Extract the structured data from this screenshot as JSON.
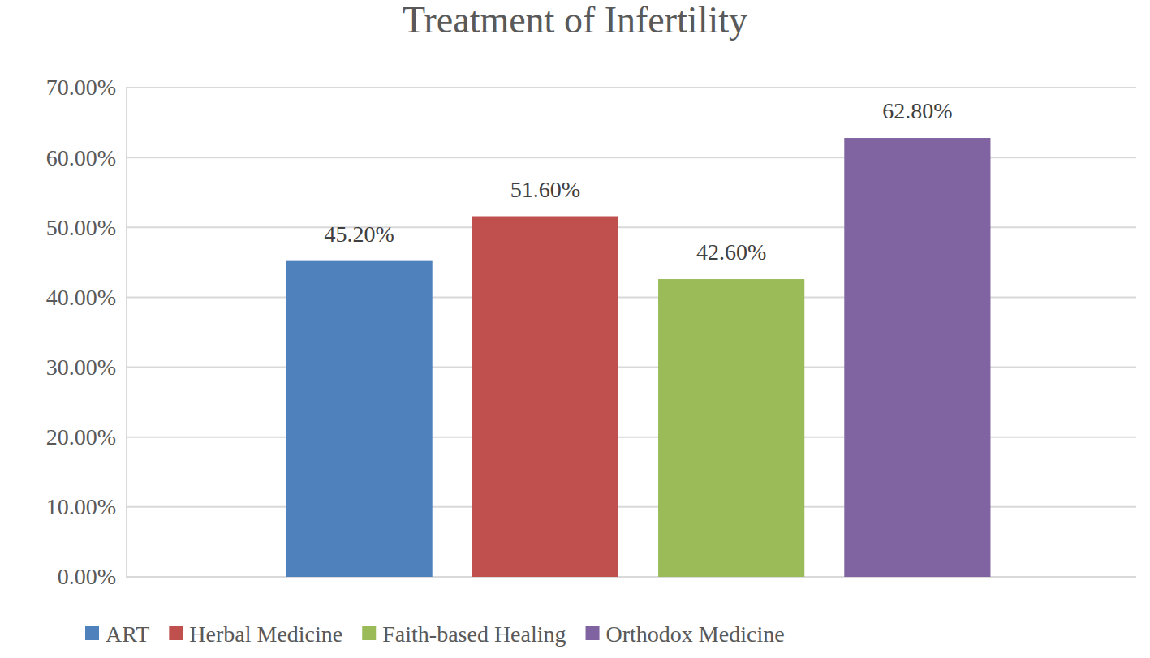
{
  "chart_data": {
    "type": "bar",
    "title": "Treatment of Infertility",
    "categories": [
      "ART",
      "Herbal Medicine",
      "Faith-based Healing",
      "Orthodox Medicine"
    ],
    "values": [
      45.2,
      51.6,
      42.6,
      62.8
    ],
    "value_labels": [
      "45.20%",
      "51.60%",
      "42.60%",
      "62.80%"
    ],
    "colors": [
      "#4f81bd",
      "#c0504d",
      "#9bbb59",
      "#8064a2"
    ],
    "ylim": [
      0,
      70
    ],
    "yticks": [
      {
        "value": 0,
        "label": "0.00%"
      },
      {
        "value": 10,
        "label": "10.00%"
      },
      {
        "value": 20,
        "label": "20.00%"
      },
      {
        "value": 30,
        "label": "30.00%"
      },
      {
        "value": 40,
        "label": "40.00%"
      },
      {
        "value": 50,
        "label": "50.00%"
      },
      {
        "value": 60,
        "label": "60.00%"
      },
      {
        "value": 70,
        "label": "70.00%"
      }
    ],
    "grid": true,
    "data_labels": true,
    "legend": "bottom",
    "tick_labels": "y"
  }
}
